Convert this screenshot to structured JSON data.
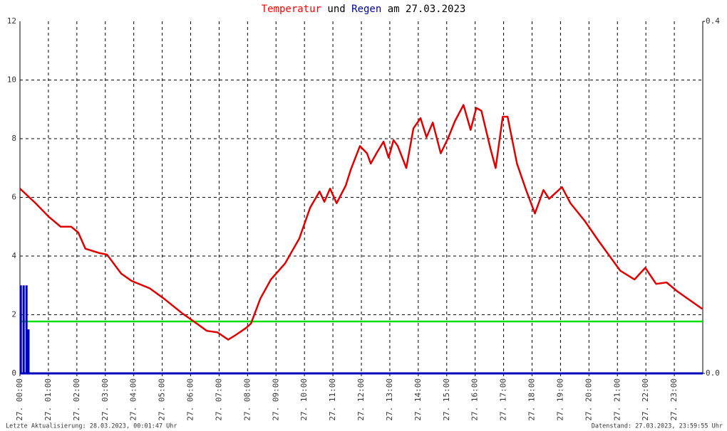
{
  "chart_data": {
    "type": "line",
    "title_parts": [
      {
        "text": "Temperatur",
        "color": "#ff0000"
      },
      {
        "text": "und",
        "color": "#000000"
      },
      {
        "text": "Regen",
        "color": "#0000a0"
      },
      {
        "text": "am 27.03.2023",
        "color": "#000000"
      }
    ],
    "series": [
      {
        "name": "Temperatur",
        "type": "line",
        "color": "#e00000",
        "x": [
          0,
          0.55,
          1.0,
          1.43,
          1.8,
          2.05,
          2.3,
          2.8,
          3.06,
          3.56,
          3.93,
          4.56,
          5.06,
          5.7,
          6.07,
          6.57,
          6.94,
          7.32,
          7.57,
          7.95,
          8.12,
          8.45,
          8.82,
          9.32,
          9.82,
          10.2,
          10.53,
          10.7,
          10.9,
          11.13,
          11.45,
          11.63,
          11.95,
          12.2,
          12.33,
          12.53,
          12.78,
          12.96,
          13.13,
          13.28,
          13.58,
          13.83,
          14.08,
          14.29,
          14.51,
          14.79,
          15.04,
          15.29,
          15.59,
          15.84,
          16.04,
          16.22,
          16.54,
          16.72,
          16.97,
          17.14,
          17.47,
          17.79,
          18.1,
          18.4,
          18.6,
          19.05,
          19.35,
          19.85,
          20.35,
          21.1,
          21.6,
          21.98,
          22.36,
          22.73,
          23.1,
          23.98
        ],
        "values": [
          6.3,
          5.8,
          5.35,
          5.0,
          5.0,
          4.8,
          4.25,
          4.1,
          4.05,
          3.4,
          3.15,
          2.9,
          2.55,
          2.05,
          1.8,
          1.45,
          1.4,
          1.15,
          1.3,
          1.55,
          1.7,
          2.55,
          3.2,
          3.75,
          4.6,
          5.65,
          6.2,
          5.85,
          6.3,
          5.8,
          6.4,
          6.95,
          7.75,
          7.5,
          7.15,
          7.5,
          7.9,
          7.35,
          7.95,
          7.75,
          7.0,
          8.35,
          8.7,
          8.05,
          8.55,
          7.5,
          8.0,
          8.6,
          9.15,
          8.3,
          9.05,
          8.95,
          7.65,
          7.0,
          8.75,
          8.75,
          7.15,
          6.25,
          5.45,
          6.25,
          5.95,
          6.35,
          5.8,
          5.2,
          4.5,
          3.5,
          3.2,
          3.6,
          3.05,
          3.1,
          2.8,
          2.2
        ]
      },
      {
        "name": "Regen",
        "type": "bar",
        "axis": "y2",
        "color": "#0000c0",
        "x": [
          0.03,
          0.13,
          0.23,
          0.3
        ],
        "values": [
          0.1,
          0.1,
          0.1,
          0.05
        ]
      }
    ],
    "reference_line": {
      "value": 1.77,
      "color": "#00e000"
    },
    "xlim": [
      0,
      24
    ],
    "xticks": [
      {
        "value": 0,
        "label": "27. 00:00"
      },
      {
        "value": 1,
        "label": "27. 01:00"
      },
      {
        "value": 2,
        "label": "27. 02:00"
      },
      {
        "value": 3,
        "label": "27. 03:00"
      },
      {
        "value": 4,
        "label": "27. 04:00"
      },
      {
        "value": 5,
        "label": "27. 05:00"
      },
      {
        "value": 6,
        "label": "27. 06:00"
      },
      {
        "value": 7,
        "label": "27. 07:00"
      },
      {
        "value": 8,
        "label": "27. 08:00"
      },
      {
        "value": 9,
        "label": "27. 09:00"
      },
      {
        "value": 10,
        "label": "27. 10:00"
      },
      {
        "value": 11,
        "label": "27. 11:00"
      },
      {
        "value": 12,
        "label": "27. 12:00"
      },
      {
        "value": 13,
        "label": "27. 13:00"
      },
      {
        "value": 14,
        "label": "27. 14:00"
      },
      {
        "value": 15,
        "label": "27. 15:00"
      },
      {
        "value": 16,
        "label": "27. 16:00"
      },
      {
        "value": 17,
        "label": "27. 17:00"
      },
      {
        "value": 18,
        "label": "27. 18:00"
      },
      {
        "value": 19,
        "label": "27. 19:00"
      },
      {
        "value": 20,
        "label": "27. 20:00"
      },
      {
        "value": 21,
        "label": "27. 21:00"
      },
      {
        "value": 22,
        "label": "27. 22:00"
      },
      {
        "value": 23,
        "label": "27. 23:00"
      }
    ],
    "ylim": [
      0,
      12
    ],
    "yticks": [
      0,
      2,
      4,
      6,
      8,
      10,
      12
    ],
    "y2lim": [
      0,
      0.4
    ],
    "y2ticks": [
      {
        "value": 0,
        "label": "0.0"
      },
      {
        "value": 0.4,
        "label": "0.4"
      }
    ],
    "grid": true,
    "footer_left": "Letzte Aktualisierung: 28.03.2023, 00:01:47 Uhr",
    "footer_right": "Datenstand: 27.03.2023, 23:59:55 Uhr"
  }
}
